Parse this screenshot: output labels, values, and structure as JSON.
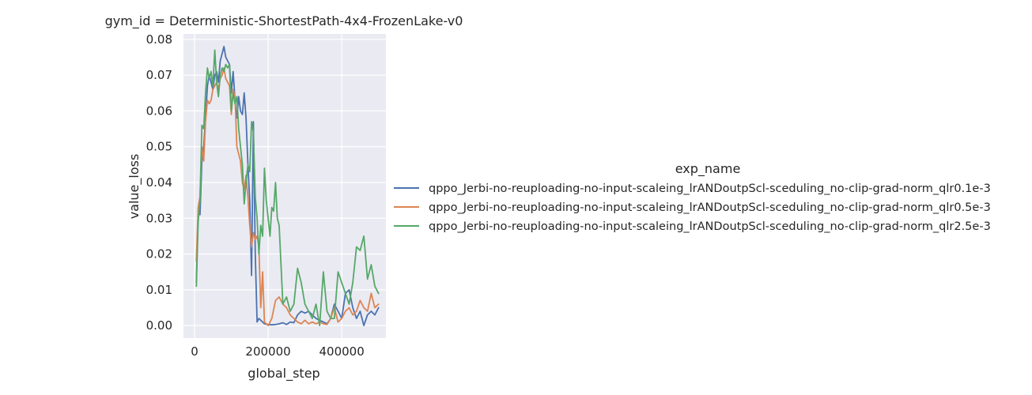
{
  "chart_data": {
    "type": "line",
    "title": "gym_id = Deterministic-ShortestPath-4x4-FrozenLake-v0",
    "xlabel": "global_step",
    "ylabel": "value_loss",
    "xlim": [
      -30000,
      520000
    ],
    "ylim": [
      -0.0035,
      0.0815
    ],
    "x_ticks": [
      0,
      200000,
      400000
    ],
    "x_tick_labels": [
      "0",
      "200000",
      "400000"
    ],
    "y_ticks": [
      0.0,
      0.01,
      0.02,
      0.03,
      0.04,
      0.05,
      0.06,
      0.07,
      0.08
    ],
    "y_tick_labels": [
      "0.00",
      "0.01",
      "0.02",
      "0.03",
      "0.04",
      "0.05",
      "0.06",
      "0.07",
      "0.08"
    ],
    "grid": true,
    "legend_title": "exp_name",
    "legend_position": "right",
    "series": [
      {
        "name": "qppo_Jerbi-no-reuploading-no-input-scaleing_lrANDoutpScl-sceduling_no-clip-grad-norm_qlr0.1e-3",
        "color": "#4c72b0",
        "x": [
          5000,
          10000,
          15000,
          20000,
          25000,
          30000,
          35000,
          40000,
          45000,
          50000,
          55000,
          60000,
          65000,
          70000,
          75000,
          80000,
          85000,
          90000,
          95000,
          100000,
          105000,
          110000,
          115000,
          120000,
          125000,
          130000,
          135000,
          140000,
          145000,
          150000,
          155000,
          160000,
          165000,
          170000,
          175000,
          180000,
          190000,
          200000,
          210000,
          220000,
          230000,
          240000,
          250000,
          260000,
          270000,
          280000,
          290000,
          300000,
          310000,
          320000,
          330000,
          340000,
          350000,
          360000,
          370000,
          380000,
          390000,
          400000,
          410000,
          420000,
          430000,
          440000,
          450000,
          460000,
          470000,
          480000,
          490000,
          500000
        ],
        "y": [
          0.012,
          0.032,
          0.031,
          0.046,
          0.05,
          0.058,
          0.067,
          0.07,
          0.068,
          0.066,
          0.07,
          0.071,
          0.068,
          0.074,
          0.076,
          0.078,
          0.075,
          0.074,
          0.073,
          0.065,
          0.071,
          0.063,
          0.058,
          0.064,
          0.06,
          0.059,
          0.065,
          0.058,
          0.045,
          0.035,
          0.014,
          0.057,
          0.02,
          0.001,
          0.002,
          0.0015,
          0.0005,
          0.0003,
          0.0002,
          0.0003,
          0.0005,
          0.0008,
          0.0003,
          0.001,
          0.0008,
          0.003,
          0.004,
          0.0035,
          0.004,
          0.003,
          0.002,
          0.0015,
          0.001,
          0.0005,
          0.002,
          0.006,
          0.004,
          0.002,
          0.009,
          0.01,
          0.005,
          0.002,
          0.004,
          0.0,
          0.003,
          0.004,
          0.003,
          0.005
        ]
      },
      {
        "name": "qppo_Jerbi-no-reuploading-no-input-scaleing_lrANDoutpScl-sceduling_no-clip-grad-norm_qlr0.5e-3",
        "color": "#dd8452",
        "x": [
          5000,
          10000,
          15000,
          20000,
          25000,
          30000,
          35000,
          40000,
          45000,
          50000,
          55000,
          60000,
          65000,
          70000,
          75000,
          80000,
          85000,
          90000,
          95000,
          100000,
          105000,
          110000,
          115000,
          120000,
          125000,
          130000,
          135000,
          140000,
          145000,
          150000,
          155000,
          160000,
          165000,
          170000,
          175000,
          180000,
          185000,
          190000,
          200000,
          210000,
          220000,
          230000,
          240000,
          250000,
          260000,
          270000,
          280000,
          290000,
          300000,
          310000,
          320000,
          330000,
          340000,
          350000,
          360000,
          370000,
          380000,
          390000,
          400000,
          410000,
          420000,
          430000,
          440000,
          450000,
          460000,
          470000,
          480000,
          490000,
          500000
        ],
        "y": [
          0.018,
          0.033,
          0.036,
          0.05,
          0.046,
          0.057,
          0.063,
          0.062,
          0.063,
          0.066,
          0.067,
          0.068,
          0.066,
          0.069,
          0.07,
          0.072,
          0.069,
          0.068,
          0.067,
          0.059,
          0.066,
          0.064,
          0.05,
          0.048,
          0.046,
          0.04,
          0.038,
          0.042,
          0.036,
          0.028,
          0.022,
          0.026,
          0.024,
          0.025,
          0.022,
          0.005,
          0.015,
          0.001,
          0.0,
          0.002,
          0.007,
          0.008,
          0.006,
          0.005,
          0.003,
          0.002,
          0.001,
          0.0005,
          0.0015,
          0.0005,
          0.001,
          0.0005,
          0.001,
          0.0005,
          0.0003,
          0.002,
          0.005,
          0.001,
          0.002,
          0.004,
          0.005,
          0.003,
          0.004,
          0.007,
          0.005,
          0.004,
          0.009,
          0.005,
          0.006
        ]
      },
      {
        "name": "qppo_Jerbi-no-reuploading-no-input-scaleing_lrANDoutpScl-sceduling_no-clip-grad-norm_qlr2.5e-3",
        "color": "#55a868",
        "x": [
          5000,
          10000,
          15000,
          20000,
          25000,
          30000,
          35000,
          40000,
          45000,
          50000,
          55000,
          60000,
          65000,
          70000,
          75000,
          80000,
          85000,
          90000,
          95000,
          100000,
          105000,
          110000,
          115000,
          120000,
          125000,
          130000,
          135000,
          140000,
          145000,
          150000,
          155000,
          160000,
          165000,
          170000,
          175000,
          180000,
          185000,
          190000,
          195000,
          200000,
          205000,
          210000,
          215000,
          220000,
          225000,
          230000,
          240000,
          250000,
          260000,
          270000,
          280000,
          290000,
          300000,
          310000,
          320000,
          330000,
          340000,
          350000,
          360000,
          370000,
          380000,
          390000,
          400000,
          410000,
          420000,
          430000,
          440000,
          450000,
          460000,
          470000,
          480000,
          490000,
          500000
        ],
        "y": [
          0.011,
          0.029,
          0.035,
          0.056,
          0.055,
          0.065,
          0.072,
          0.069,
          0.071,
          0.067,
          0.077,
          0.068,
          0.064,
          0.07,
          0.072,
          0.071,
          0.073,
          0.072,
          0.073,
          0.06,
          0.065,
          0.062,
          0.064,
          0.055,
          0.05,
          0.045,
          0.034,
          0.04,
          0.045,
          0.043,
          0.057,
          0.054,
          0.036,
          0.03,
          0.02,
          0.028,
          0.025,
          0.044,
          0.035,
          0.03,
          0.025,
          0.033,
          0.032,
          0.04,
          0.03,
          0.028,
          0.006,
          0.008,
          0.004,
          0.006,
          0.016,
          0.012,
          0.006,
          0.004,
          0.002,
          0.006,
          0.0,
          0.015,
          0.004,
          0.002,
          0.002,
          0.015,
          0.012,
          0.009,
          0.006,
          0.012,
          0.022,
          0.021,
          0.025,
          0.013,
          0.017,
          0.011,
          0.009
        ]
      }
    ]
  }
}
